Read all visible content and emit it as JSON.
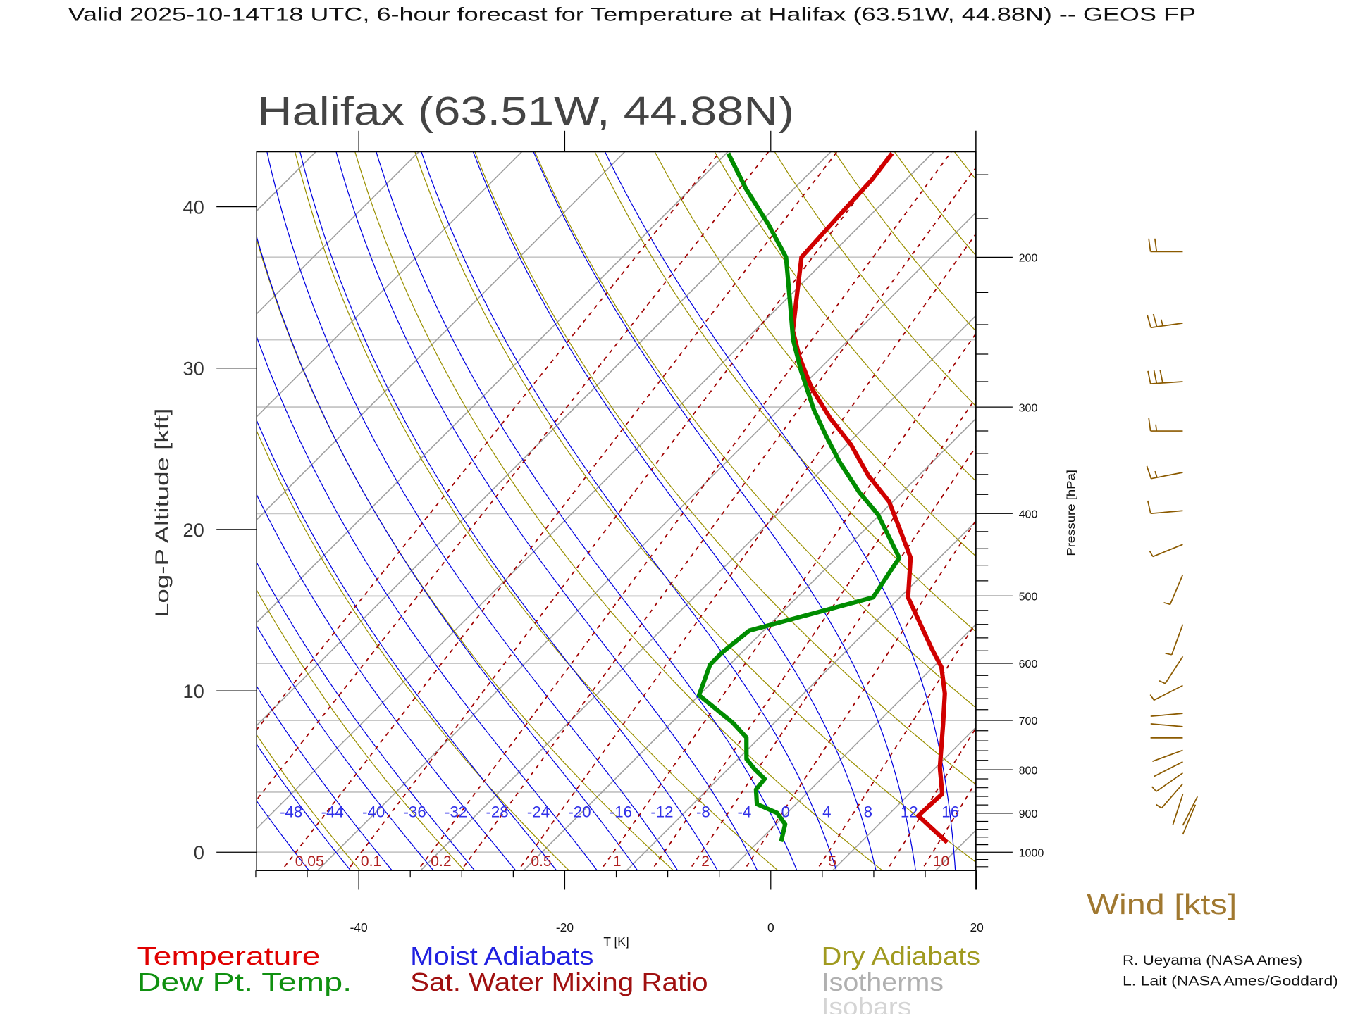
{
  "title": "Valid 2025-10-14T18 UTC, 6-hour forecast for Temperature at Halifax (63.51W, 44.88N) -- GEOS FP",
  "subtitle": "Halifax (63.51W, 44.88N)",
  "colors": {
    "temperature": "#d00000",
    "dewpoint": "#008c00",
    "moist_adiabat": "#0000e0",
    "mixing_ratio": "#a00000",
    "dry_adiabat": "#9a9000",
    "isotherm": "#a0a0a0",
    "isobar": "#c8c8c8",
    "wind": "#8b5a00"
  },
  "legend": {
    "temperature": "Temperature",
    "dewpoint": "Dew Pt. Temp.",
    "moist_adiabats": "Moist Adiabats",
    "mixing_ratio": "Sat. Water Mixing Ratio",
    "dry_adiabats": "Dry Adiabats",
    "isotherms": "Isotherms",
    "isobars": "Isobars",
    "wind": "Wind [kts]"
  },
  "credits": [
    "R. Ueyama (NASA Ames)",
    "L. Lait (NASA Ames/Goddard)"
  ],
  "chart_data": {
    "type": "line",
    "subtype": "skew-T log-P diagram",
    "title": "Halifax (63.51W, 44.88N)",
    "xlabel": "T [K]",
    "ylabel_left": "Log-P Altitude [kft]",
    "ylabel_right": "Pressure [hPa]",
    "x_ticks": [
      "-40",
      "-20",
      "0",
      "20"
    ],
    "x_tick_values": [
      -40,
      -20,
      0,
      20
    ],
    "xlim_at_bottom": [
      -50,
      20
    ],
    "pressure_range": [
      1050,
      150
    ],
    "y_left_ticks": [
      "0",
      "10",
      "20",
      "30",
      "40"
    ],
    "y_left_tick_values": [
      0,
      10,
      20,
      30,
      40
    ],
    "y_right_ticks": [
      "200",
      "300",
      "400",
      "500",
      "600",
      "700",
      "800",
      "900",
      "1000"
    ],
    "y_right_tick_values": [
      200,
      300,
      400,
      500,
      600,
      700,
      800,
      900,
      1000
    ],
    "isobars_hPa": [
      1000,
      850,
      700,
      600,
      500,
      400,
      300,
      250,
      200
    ],
    "moist_adiabat_labels": [
      "-48",
      "-44",
      "-40",
      "-36",
      "-32",
      "-28",
      "-24",
      "-20",
      "-16",
      "-12",
      "-8",
      "-4",
      "0",
      "4",
      "8",
      "12",
      "16"
    ],
    "moist_adiabat_values": [
      -48,
      -44,
      -40,
      -36,
      -32,
      -28,
      -24,
      -20,
      -16,
      -12,
      -8,
      -4,
      0,
      4,
      8,
      12,
      16
    ],
    "mixing_ratio_labels": [
      "0.05",
      "0.1",
      "0.2",
      "0.5",
      "1",
      "2",
      "5",
      "10"
    ],
    "mixing_ratio_values": [
      0.05,
      0.1,
      0.2,
      0.5,
      1,
      2,
      5,
      10
    ],
    "series": [
      {
        "name": "Temperature",
        "points_p_T": [
          [
            974,
            14.4
          ],
          [
            906,
            9.0
          ],
          [
            854,
            9.2
          ],
          [
            795,
            6.4
          ],
          [
            707,
            2.5
          ],
          [
            651,
            -0.3
          ],
          [
            606,
            -3.2
          ],
          [
            578,
            -5.8
          ],
          [
            502,
            -13.2
          ],
          [
            451,
            -16.8
          ],
          [
            416,
            -20.8
          ],
          [
            387,
            -24.4
          ],
          [
            361,
            -28.9
          ],
          [
            332,
            -33.6
          ],
          [
            309,
            -38.2
          ],
          [
            285,
            -42.9
          ],
          [
            262,
            -47.1
          ],
          [
            244,
            -50.3
          ],
          [
            222,
            -53.3
          ],
          [
            200,
            -56.6
          ],
          [
            179,
            -57.0
          ],
          [
            162,
            -57.3
          ],
          [
            151,
            -57.9
          ]
        ]
      },
      {
        "name": "Dew Pt. Temp.",
        "points_p_T": [
          [
            972,
            -1.8
          ],
          [
            927,
            -3.1
          ],
          [
            899,
            -5.0
          ],
          [
            878,
            -7.8
          ],
          [
            844,
            -9.3
          ],
          [
            820,
            -9.5
          ],
          [
            799,
            -11.4
          ],
          [
            777,
            -13.2
          ],
          [
            733,
            -15.3
          ],
          [
            704,
            -18.1
          ],
          [
            654,
            -24.0
          ],
          [
            602,
            -25.9
          ],
          [
            583,
            -25.9
          ],
          [
            549,
            -25.4
          ],
          [
            502,
            -16.6
          ],
          [
            451,
            -17.9
          ],
          [
            401,
            -24.2
          ],
          [
            378,
            -28.1
          ],
          [
            348,
            -33.0
          ],
          [
            324,
            -36.9
          ],
          [
            302,
            -40.6
          ],
          [
            272,
            -45.6
          ],
          [
            250,
            -49.4
          ],
          [
            225,
            -53.5
          ],
          [
            200,
            -58.1
          ],
          [
            183,
            -63.0
          ],
          [
            166,
            -68.7
          ],
          [
            151,
            -73.8
          ]
        ]
      }
    ],
    "winds": [
      {
        "p": 197,
        "dir": 270,
        "kt": 20
      },
      {
        "p": 239,
        "dir": 262,
        "kt": 25
      },
      {
        "p": 280,
        "dir": 266,
        "kt": 30
      },
      {
        "p": 320,
        "dir": 270,
        "kt": 15
      },
      {
        "p": 358,
        "dir": 259,
        "kt": 15
      },
      {
        "p": 397,
        "dir": 265,
        "kt": 10
      },
      {
        "p": 435,
        "dir": 248,
        "kt": 5
      },
      {
        "p": 472,
        "dir": 203,
        "kt": 5
      },
      {
        "p": 540,
        "dir": 200,
        "kt": 5
      },
      {
        "p": 589,
        "dir": 213,
        "kt": 5
      },
      {
        "p": 637,
        "dir": 243,
        "kt": 5
      },
      {
        "p": 687,
        "dir": 265,
        "kt": 2
      },
      {
        "p": 712,
        "dir": 275,
        "kt": 2
      },
      {
        "p": 734,
        "dir": 270,
        "kt": 2
      },
      {
        "p": 759,
        "dir": 250,
        "kt": 2
      },
      {
        "p": 783,
        "dir": 243,
        "kt": 2
      },
      {
        "p": 807,
        "dir": 235,
        "kt": 5
      },
      {
        "p": 831,
        "dir": 221,
        "kt": 5
      },
      {
        "p": 855,
        "dir": 198,
        "kt": 2
      },
      {
        "p": 930,
        "dir": 27,
        "kt": 2
      },
      {
        "p": 953,
        "dir": 23,
        "kt": 2
      }
    ]
  }
}
